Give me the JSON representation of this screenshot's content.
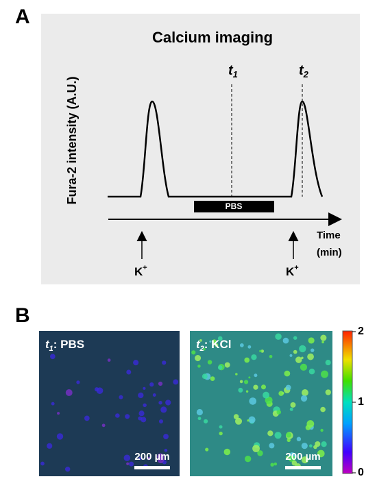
{
  "panel_a": {
    "letter": "A",
    "title": "Calcium imaging",
    "y_label": "Fura-2 intensity (A.U.)",
    "t1": {
      "base": "t",
      "sub": "1"
    },
    "t2": {
      "base": "t",
      "sub": "2"
    },
    "pbs_bar": "PBS",
    "x_label": [
      "Time",
      "(min)"
    ],
    "stimulus_1": {
      "base": "K",
      "sup": "+"
    },
    "stimulus_2": {
      "base": "K",
      "sup": "+"
    }
  },
  "panel_b": {
    "letter": "B",
    "images": [
      {
        "time": {
          "base": "t",
          "sub": "1"
        },
        "label": ": PBS",
        "scale_bar": "200 µm"
      },
      {
        "time": {
          "base": "t",
          "sub": "2"
        },
        "label": ": KCl",
        "scale_bar": "200 µm"
      }
    ],
    "colorbar": {
      "range": [
        0,
        2
      ],
      "ticks": [
        0,
        1,
        2
      ]
    }
  }
}
